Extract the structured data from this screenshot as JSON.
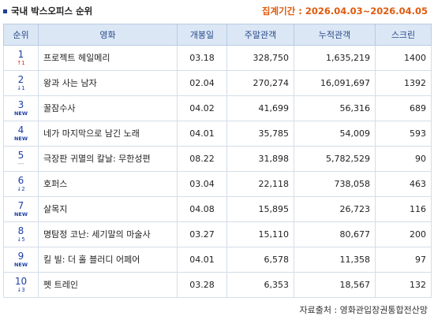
{
  "header": {
    "title": "국내 박스오피스 순위",
    "period_label": "집계기간 :",
    "period_value": "2026.04.03~2026.04.05"
  },
  "columns": [
    "순위",
    "영화",
    "개봉일",
    "주말관객",
    "누적관객",
    "스크린"
  ],
  "rows": [
    {
      "rank": "1",
      "change": "↑1",
      "change_type": "up",
      "title": "프로젝트 헤일메리",
      "open": "03.18",
      "weekend": "328,750",
      "total": "1,635,219",
      "screens": "1400"
    },
    {
      "rank": "2",
      "change": "↓1",
      "change_type": "down",
      "title": "왕과 사는 남자",
      "open": "02.04",
      "weekend": "270,274",
      "total": "16,091,697",
      "screens": "1392"
    },
    {
      "rank": "3",
      "change": "NEW",
      "change_type": "new",
      "title": "꿀잠수사",
      "open": "04.02",
      "weekend": "41,699",
      "total": "56,316",
      "screens": "689"
    },
    {
      "rank": "4",
      "change": "NEW",
      "change_type": "new",
      "title": "네가 마지막으로 남긴 노래",
      "open": "04.01",
      "weekend": "35,785",
      "total": "54,009",
      "screens": "593"
    },
    {
      "rank": "5",
      "change": "—",
      "change_type": "same",
      "title": "극장판 귀멸의 칼날: 무한성편",
      "open": "08.22",
      "weekend": "31,898",
      "total": "5,782,529",
      "screens": "90"
    },
    {
      "rank": "6",
      "change": "↓2",
      "change_type": "down",
      "title": "호퍼스",
      "open": "03.04",
      "weekend": "22,118",
      "total": "738,058",
      "screens": "463"
    },
    {
      "rank": "7",
      "change": "NEW",
      "change_type": "new",
      "title": "살목지",
      "open": "04.08",
      "weekend": "15,895",
      "total": "26,723",
      "screens": "116"
    },
    {
      "rank": "8",
      "change": "↓5",
      "change_type": "down",
      "title": "명탐정 코난: 세기말의 마술사",
      "open": "03.27",
      "weekend": "15,110",
      "total": "80,677",
      "screens": "200"
    },
    {
      "rank": "9",
      "change": "NEW",
      "change_type": "new",
      "title": "킬 빌: 더 홀 블러디 어페어",
      "open": "04.01",
      "weekend": "6,578",
      "total": "11,358",
      "screens": "97"
    },
    {
      "rank": "10",
      "change": "↓3",
      "change_type": "down",
      "title": "펫 트레인",
      "open": "03.28",
      "weekend": "6,353",
      "total": "18,567",
      "screens": "132"
    }
  ],
  "footer": {
    "source": "자료출처 : 영화관입장권통합전산망"
  },
  "colors": {
    "accent": "#1e3fa8",
    "period": "#e05a0c",
    "header_bg": "#dbe7f5"
  }
}
